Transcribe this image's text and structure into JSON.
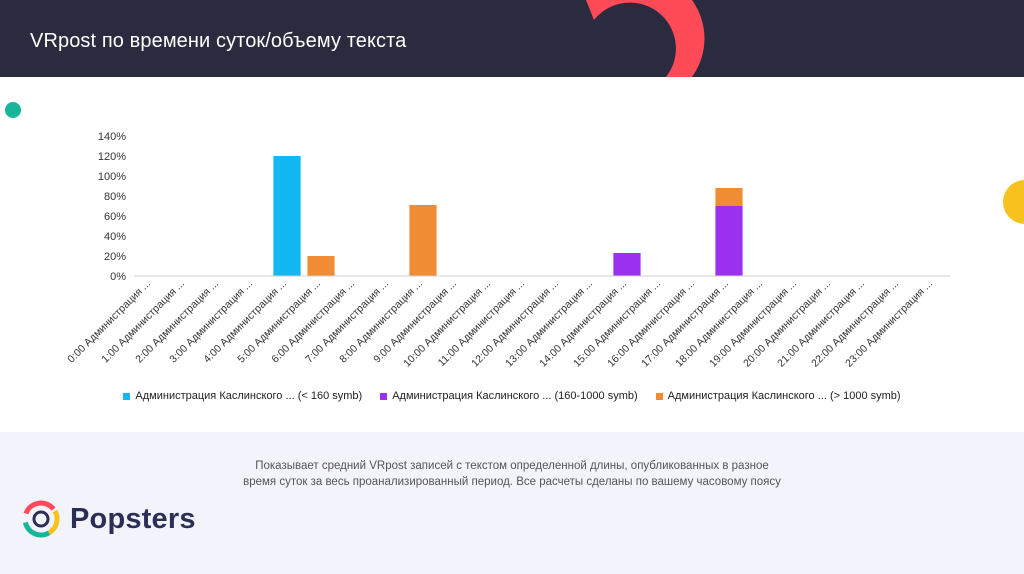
{
  "header": {
    "title": "VRpost по времени суток/объему текста"
  },
  "colors": {
    "short": "#11b8f2",
    "medium": "#9b30f0",
    "long": "#f08c34",
    "accent_red": "#ff4a57",
    "accent_yellow": "#f8c21c",
    "accent_teal": "#17b59a"
  },
  "chart_data": {
    "type": "bar",
    "title": "",
    "xlabel": "",
    "ylabel": "",
    "ylim": [
      0,
      140
    ],
    "y_ticks": [
      "0%",
      "20%",
      "40%",
      "60%",
      "80%",
      "100%",
      "120%",
      "140%"
    ],
    "categories": [
      "0:00 Администрация ...",
      "1:00 Администрация ...",
      "2:00 Администрация ...",
      "3:00 Администрация ...",
      "4:00 Администрация ...",
      "5:00 Администрация ...",
      "6:00 Администрация ...",
      "7:00 Администрация ...",
      "8:00 Администрация ...",
      "9:00 Администрация ...",
      "10:00 Администрация ...",
      "11:00 Администрация ...",
      "12:00 Администрация ...",
      "13:00 Администрация ...",
      "14:00 Администрация ...",
      "15:00 Администрация ...",
      "16:00 Администрация ...",
      "17:00 Администрация ...",
      "18:00 Администрация ...",
      "19:00 Администрация ...",
      "20:00 Администрация ...",
      "21:00 Администрация ...",
      "22:00 Администрация ...",
      "23:00 Администрация ..."
    ],
    "series": [
      {
        "name": "Администрация Каслинского ... (< 160 symb)",
        "color": "#11b8f2",
        "values": [
          0,
          0,
          0,
          0,
          120,
          0,
          0,
          0,
          0,
          0,
          0,
          0,
          0,
          0,
          0,
          0,
          0,
          0,
          0,
          0,
          0,
          0,
          0,
          0
        ]
      },
      {
        "name": "Администрация Каслинского ... (160-1000 symb)",
        "color": "#9b30f0",
        "values": [
          0,
          0,
          0,
          0,
          0,
          0,
          0,
          0,
          0,
          0,
          0,
          0,
          0,
          0,
          23,
          0,
          0,
          70,
          0,
          0,
          0,
          0,
          0,
          0
        ]
      },
      {
        "name": "Администрация Каслинского ... (> 1000 symb)",
        "color": "#f08c34",
        "values": [
          0,
          0,
          0,
          0,
          0,
          20,
          0,
          0,
          71,
          0,
          0,
          0,
          0,
          0,
          0,
          0,
          0,
          18,
          0,
          0,
          0,
          0,
          0,
          0
        ]
      }
    ]
  },
  "caption": {
    "line1": "Показывает средний VRpost записей с текстом определенной длины, опубликованных в разное",
    "line2": "время суток за весь проанализированный период. Все расчеты сделаны по вашему часовому поясу"
  },
  "logo": {
    "name": "Popsters"
  }
}
